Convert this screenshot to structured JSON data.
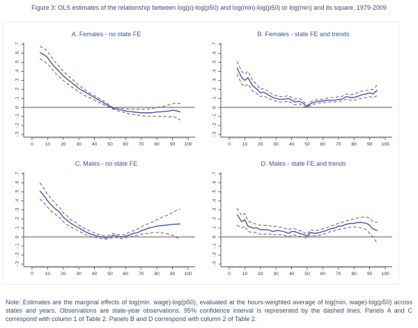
{
  "figure": {
    "title": "Figure 3: OLS estimates of the relationship between log(p)-log(p50) and log(min)-log(p50) or log(min) and its square, 1979-2009",
    "note": "Note: Estimates are the marginal effects of log(min. wage)-log(p50), evaluated at the hours-weighted average of log(min. wage)-log(p50) across states and years. Observations are state-year observations. 95% confidence interval is represented by the dashed lines. Panels A and C correspond with column 1 of Table 2. Panels B and D correspond with column 2 of Table 2."
  },
  "colors": {
    "estimate_line": "#3d4fc4",
    "ci_dashed_line": "#9e544e",
    "zero_line": "#9b9b9b",
    "axis": "#4a4a4a",
    "tick_label": "#3a3a3a",
    "panel_title": "#3c5488",
    "text": "#3b4a6b"
  },
  "chart_data": [
    {
      "type": "line",
      "title": "A. Females - no state FE",
      "xlim": [
        0,
        100
      ],
      "ylim": [
        -0.33,
        0.72
      ],
      "xticks": [
        0,
        10,
        20,
        30,
        40,
        50,
        60,
        70,
        80,
        90,
        100
      ],
      "ytick_values": [
        0.7,
        0.6,
        0.5,
        0.4,
        0.3,
        0.2,
        0.1,
        0,
        -0.1,
        -0.2,
        -0.3
      ],
      "ytick_labels": [
        ".7",
        ".6",
        ".5",
        ".4",
        ".3",
        ".2",
        ".1",
        "0",
        "-.1",
        "-.2",
        "-.3"
      ],
      "x": [
        5,
        8,
        10,
        12,
        15,
        18,
        20,
        22,
        25,
        28,
        30,
        32,
        35,
        38,
        40,
        42,
        45,
        47,
        50,
        52,
        55,
        58,
        60,
        62,
        65,
        68,
        70,
        72,
        75,
        78,
        80,
        82,
        85,
        88,
        90,
        92,
        95
      ],
      "series": [
        {
          "name": "estimate",
          "values": [
            0.61,
            0.58,
            0.55,
            0.5,
            0.44,
            0.39,
            0.35,
            0.32,
            0.28,
            0.24,
            0.21,
            0.19,
            0.16,
            0.13,
            0.11,
            0.09,
            0.06,
            0.04,
            0.01,
            -0.01,
            -0.02,
            -0.03,
            -0.04,
            -0.045,
            -0.05,
            -0.055,
            -0.06,
            -0.06,
            -0.06,
            -0.055,
            -0.05,
            -0.05,
            -0.045,
            -0.04,
            -0.03,
            -0.035,
            -0.05
          ]
        },
        {
          "name": "upper 95% CI",
          "values": [
            0.68,
            0.65,
            0.62,
            0.57,
            0.5,
            0.44,
            0.4,
            0.37,
            0.32,
            0.28,
            0.24,
            0.22,
            0.18,
            0.15,
            0.13,
            0.11,
            0.08,
            0.06,
            0.02,
            0.0,
            -0.005,
            -0.01,
            -0.015,
            -0.02,
            -0.02,
            -0.02,
            -0.02,
            -0.02,
            -0.015,
            -0.01,
            0.0,
            0.005,
            0.015,
            0.03,
            0.04,
            0.05,
            0.04
          ]
        },
        {
          "name": "lower 95% CI",
          "values": [
            0.54,
            0.51,
            0.48,
            0.44,
            0.38,
            0.33,
            0.3,
            0.27,
            0.23,
            0.2,
            0.17,
            0.15,
            0.12,
            0.1,
            0.08,
            0.06,
            0.04,
            0.02,
            0.0,
            -0.02,
            -0.04,
            -0.05,
            -0.06,
            -0.07,
            -0.08,
            -0.085,
            -0.09,
            -0.095,
            -0.1,
            -0.1,
            -0.1,
            -0.1,
            -0.1,
            -0.105,
            -0.1,
            -0.11,
            -0.14
          ]
        }
      ]
    },
    {
      "type": "line",
      "title": "B. Females - state FE and trends",
      "xlim": [
        0,
        100
      ],
      "ylim": [
        -0.33,
        0.72
      ],
      "xticks": [
        0,
        10,
        20,
        30,
        40,
        50,
        60,
        70,
        80,
        90,
        100
      ],
      "ytick_values": [
        0.7,
        0.6,
        0.5,
        0.4,
        0.3,
        0.2,
        0.1,
        0,
        -0.1,
        -0.2,
        -0.3
      ],
      "ytick_labels": [
        ".7",
        ".6",
        ".5",
        ".4",
        ".3",
        ".2",
        ".1",
        "0",
        "-.1",
        "-.2",
        "-.3"
      ],
      "x": [
        5,
        8,
        10,
        12,
        15,
        18,
        20,
        22,
        25,
        28,
        30,
        32,
        35,
        38,
        40,
        42,
        45,
        47,
        50,
        52,
        55,
        58,
        60,
        62,
        65,
        68,
        70,
        72,
        75,
        78,
        80,
        82,
        85,
        88,
        90,
        92,
        95
      ],
      "series": [
        {
          "name": "estimate",
          "values": [
            0.44,
            0.33,
            0.3,
            0.33,
            0.24,
            0.2,
            0.16,
            0.17,
            0.14,
            0.11,
            0.1,
            0.09,
            0.09,
            0.1,
            0.08,
            0.06,
            0.07,
            0.05,
            0.01,
            0.04,
            0.06,
            0.07,
            0.07,
            0.08,
            0.08,
            0.08,
            0.09,
            0.09,
            0.12,
            0.11,
            0.11,
            0.12,
            0.14,
            0.15,
            0.16,
            0.15,
            0.19
          ]
        },
        {
          "name": "upper 95% CI",
          "values": [
            0.51,
            0.4,
            0.37,
            0.4,
            0.3,
            0.25,
            0.2,
            0.21,
            0.18,
            0.14,
            0.13,
            0.12,
            0.12,
            0.13,
            0.11,
            0.09,
            0.1,
            0.08,
            0.02,
            0.06,
            0.08,
            0.09,
            0.09,
            0.1,
            0.11,
            0.11,
            0.12,
            0.12,
            0.15,
            0.14,
            0.15,
            0.16,
            0.18,
            0.19,
            0.2,
            0.2,
            0.25
          ]
        },
        {
          "name": "lower 95% CI",
          "values": [
            0.37,
            0.26,
            0.23,
            0.26,
            0.18,
            0.15,
            0.12,
            0.13,
            0.1,
            0.08,
            0.07,
            0.06,
            0.06,
            0.07,
            0.05,
            0.03,
            0.04,
            0.02,
            0.0,
            0.02,
            0.04,
            0.05,
            0.05,
            0.06,
            0.06,
            0.06,
            0.07,
            0.07,
            0.09,
            0.08,
            0.08,
            0.09,
            0.1,
            0.11,
            0.12,
            0.11,
            0.13
          ]
        }
      ]
    },
    {
      "type": "line",
      "title": "C. Males - no state FE",
      "xlim": [
        0,
        100
      ],
      "ylim": [
        -0.33,
        0.72
      ],
      "xticks": [
        0,
        10,
        20,
        30,
        40,
        50,
        60,
        70,
        80,
        90,
        100
      ],
      "ytick_values": [
        0.7,
        0.6,
        0.5,
        0.4,
        0.3,
        0.2,
        0.1,
        0,
        -0.1,
        -0.2,
        -0.3
      ],
      "ytick_labels": [
        ".7",
        ".6",
        ".5",
        ".4",
        ".3",
        ".2",
        ".1",
        "0",
        "-.1",
        "-.2",
        "-.3"
      ],
      "x": [
        5,
        8,
        10,
        12,
        15,
        18,
        20,
        22,
        25,
        28,
        30,
        32,
        35,
        38,
        40,
        42,
        45,
        47,
        50,
        52,
        55,
        58,
        60,
        62,
        65,
        68,
        70,
        72,
        75,
        78,
        80,
        82,
        85,
        88,
        90,
        92,
        95
      ],
      "series": [
        {
          "name": "estimate",
          "values": [
            0.51,
            0.45,
            0.4,
            0.36,
            0.31,
            0.27,
            0.22,
            0.19,
            0.15,
            0.12,
            0.1,
            0.08,
            0.05,
            0.03,
            0.02,
            0.01,
            0.0,
            -0.01,
            0.0,
            0.02,
            0.01,
            0.0,
            0.01,
            0.02,
            0.04,
            0.05,
            0.07,
            0.08,
            0.1,
            0.11,
            0.12,
            0.125,
            0.13,
            0.135,
            0.14,
            0.14,
            0.145
          ]
        },
        {
          "name": "upper 95% CI",
          "values": [
            0.6,
            0.53,
            0.47,
            0.43,
            0.37,
            0.32,
            0.27,
            0.24,
            0.19,
            0.16,
            0.13,
            0.11,
            0.08,
            0.06,
            0.045,
            0.03,
            0.02,
            0.01,
            0.02,
            0.04,
            0.03,
            0.02,
            0.03,
            0.05,
            0.07,
            0.09,
            0.11,
            0.13,
            0.15,
            0.17,
            0.19,
            0.21,
            0.23,
            0.25,
            0.27,
            0.29,
            0.31
          ]
        },
        {
          "name": "lower 95% CI",
          "values": [
            0.42,
            0.37,
            0.33,
            0.29,
            0.25,
            0.21,
            0.17,
            0.14,
            0.11,
            0.085,
            0.06,
            0.05,
            0.02,
            0.005,
            -0.005,
            -0.01,
            -0.02,
            -0.025,
            -0.02,
            0.0,
            -0.01,
            -0.02,
            -0.01,
            0.0,
            0.01,
            0.02,
            0.03,
            0.035,
            0.04,
            0.05,
            0.05,
            0.05,
            0.04,
            0.03,
            0.02,
            0.0,
            -0.03
          ]
        }
      ]
    },
    {
      "type": "line",
      "title": "D. Males - state FE and trends",
      "xlim": [
        0,
        100
      ],
      "ylim": [
        -0.33,
        0.72
      ],
      "xticks": [
        0,
        10,
        20,
        30,
        40,
        50,
        60,
        70,
        80,
        90,
        100
      ],
      "ytick_values": [
        0.7,
        0.6,
        0.5,
        0.4,
        0.3,
        0.2,
        0.1,
        0,
        -0.1,
        -0.2,
        -0.3
      ],
      "ytick_labels": [
        ".7",
        ".6",
        ".5",
        ".4",
        ".3",
        ".2",
        ".1",
        "0",
        "-.1",
        "-.2",
        "-.3"
      ],
      "x": [
        5,
        8,
        10,
        12,
        15,
        18,
        20,
        22,
        25,
        28,
        30,
        32,
        35,
        38,
        40,
        42,
        45,
        47,
        50,
        52,
        55,
        58,
        60,
        62,
        65,
        68,
        70,
        72,
        75,
        78,
        80,
        82,
        85,
        88,
        90,
        92,
        95
      ],
      "series": [
        {
          "name": "estimate",
          "values": [
            0.25,
            0.17,
            0.19,
            0.12,
            0.1,
            0.1,
            0.08,
            0.08,
            0.08,
            0.06,
            0.07,
            0.07,
            0.06,
            0.04,
            0.06,
            0.06,
            0.04,
            0.03,
            0.01,
            0.05,
            0.04,
            0.05,
            0.06,
            0.07,
            0.09,
            0.1,
            0.12,
            0.12,
            0.14,
            0.15,
            0.15,
            0.16,
            0.16,
            0.15,
            0.13,
            0.09,
            0.07
          ]
        },
        {
          "name": "upper 95% CI",
          "values": [
            0.32,
            0.24,
            0.26,
            0.18,
            0.15,
            0.14,
            0.13,
            0.13,
            0.13,
            0.11,
            0.12,
            0.11,
            0.1,
            0.08,
            0.095,
            0.09,
            0.07,
            0.06,
            0.03,
            0.08,
            0.07,
            0.08,
            0.09,
            0.1,
            0.12,
            0.14,
            0.15,
            0.16,
            0.18,
            0.19,
            0.2,
            0.21,
            0.22,
            0.22,
            0.21,
            0.17,
            0.16
          ]
        },
        {
          "name": "lower 95% CI",
          "values": [
            0.13,
            0.1,
            0.12,
            0.06,
            0.05,
            0.05,
            0.03,
            0.03,
            0.04,
            0.02,
            0.03,
            0.03,
            0.02,
            0.0,
            0.02,
            0.02,
            0.01,
            0.0,
            -0.01,
            0.02,
            0.01,
            0.02,
            0.03,
            0.04,
            0.06,
            0.07,
            0.08,
            0.09,
            0.1,
            0.11,
            0.11,
            0.11,
            0.1,
            0.08,
            0.04,
            0.0,
            -0.07
          ]
        }
      ]
    }
  ]
}
